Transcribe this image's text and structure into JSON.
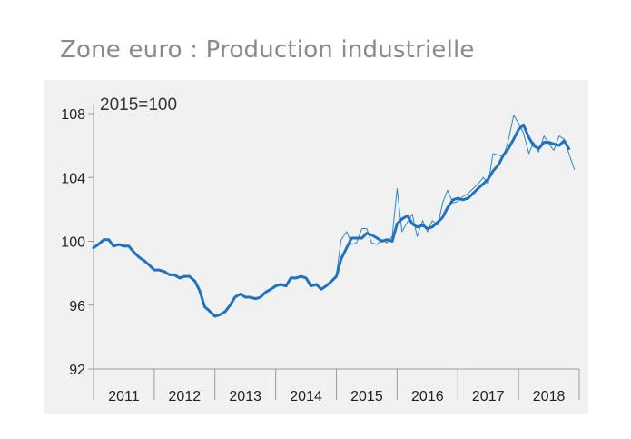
{
  "title": "Zone euro : Production industrielle",
  "chart_data": {
    "type": "line",
    "title": "Zone euro : Production industrielle",
    "subtitle": "2015=100",
    "xlabel": "",
    "ylabel": "",
    "ylim": [
      92,
      108
    ],
    "yticks": [
      92,
      96,
      100,
      104,
      108
    ],
    "xlim": [
      2011.0,
      2019.0
    ],
    "year_labels": [
      "2011",
      "2012",
      "2013",
      "2014",
      "2015",
      "2016",
      "2017",
      "2018"
    ],
    "grid": false,
    "legend": "none",
    "colors": {
      "thick": "#1f72bb",
      "thin": "#2e86c9"
    },
    "series": [
      {
        "style": "thick",
        "x": [
          2011.0,
          2011.08,
          2011.17,
          2011.25,
          2011.33,
          2011.42,
          2011.5,
          2011.58,
          2011.67,
          2011.75,
          2011.83,
          2011.92,
          2012.0,
          2012.08,
          2012.17,
          2012.25,
          2012.33,
          2012.42,
          2012.5,
          2012.58,
          2012.67,
          2012.75,
          2012.83,
          2012.92,
          2013.0,
          2013.08,
          2013.17,
          2013.25,
          2013.33,
          2013.42,
          2013.5,
          2013.58,
          2013.67,
          2013.75,
          2013.83,
          2013.92,
          2014.0,
          2014.08,
          2014.17,
          2014.25,
          2014.33,
          2014.42,
          2014.5,
          2014.58,
          2014.67,
          2014.75,
          2014.83,
          2014.92,
          2015.0,
          2015.08,
          2015.17,
          2015.25,
          2015.33,
          2015.42,
          2015.5,
          2015.58,
          2015.67,
          2015.75,
          2015.83,
          2015.92,
          2016.0,
          2016.08,
          2016.17,
          2016.25,
          2016.33,
          2016.42,
          2016.5,
          2016.58,
          2016.67,
          2016.75,
          2016.83,
          2016.92,
          2017.0,
          2017.08,
          2017.17,
          2017.25,
          2017.33,
          2017.42,
          2017.5,
          2017.58,
          2017.67,
          2017.75,
          2017.83,
          2017.92,
          2018.0,
          2018.08,
          2018.17,
          2018.25,
          2018.33,
          2018.42,
          2018.5,
          2018.58,
          2018.67,
          2018.75,
          2018.83
        ],
        "values": [
          99.6,
          99.8,
          100.1,
          100.1,
          99.7,
          99.8,
          99.7,
          99.7,
          99.3,
          99.0,
          98.8,
          98.5,
          98.2,
          98.2,
          98.1,
          97.9,
          97.9,
          97.7,
          97.8,
          97.8,
          97.5,
          96.9,
          95.9,
          95.6,
          95.3,
          95.4,
          95.6,
          96.0,
          96.5,
          96.7,
          96.5,
          96.5,
          96.4,
          96.5,
          96.8,
          97.0,
          97.2,
          97.3,
          97.2,
          97.7,
          97.7,
          97.8,
          97.7,
          97.2,
          97.3,
          97.0,
          97.2,
          97.5,
          97.8,
          98.9,
          99.6,
          100.2,
          100.2,
          100.2,
          100.5,
          100.4,
          100.2,
          100.0,
          100.1,
          100.0,
          101.1,
          101.4,
          101.6,
          101.1,
          100.9,
          101.0,
          100.8,
          100.9,
          101.2,
          101.5,
          102.1,
          102.6,
          102.7,
          102.6,
          102.7,
          103.0,
          103.3,
          103.6,
          103.9,
          104.4,
          104.8,
          105.4,
          105.8,
          106.4,
          107.0,
          107.3,
          106.5,
          106.0,
          105.8,
          106.2,
          106.2,
          106.1,
          106.0,
          106.3,
          105.8
        ]
      },
      {
        "style": "thin",
        "x": [
          2015.0,
          2015.08,
          2015.17,
          2015.25,
          2015.33,
          2015.42,
          2015.5,
          2015.58,
          2015.67,
          2015.75,
          2015.83,
          2015.92,
          2016.0,
          2016.08,
          2016.17,
          2016.25,
          2016.33,
          2016.42,
          2016.5,
          2016.58,
          2016.67,
          2016.75,
          2016.83,
          2016.92,
          2017.0,
          2017.08,
          2017.17,
          2017.25,
          2017.33,
          2017.42,
          2017.5,
          2017.58,
          2017.67,
          2017.75,
          2017.83,
          2017.92,
          2018.0,
          2018.08,
          2018.17,
          2018.25,
          2018.33,
          2018.42,
          2018.5,
          2018.58,
          2018.67,
          2018.75,
          2018.83,
          2018.92
        ],
        "values": [
          97.9,
          100.1,
          100.6,
          99.8,
          99.9,
          100.8,
          100.8,
          99.9,
          99.8,
          100.1,
          99.9,
          100.3,
          103.3,
          100.6,
          101.2,
          101.7,
          100.3,
          101.3,
          100.6,
          101.3,
          101.0,
          102.4,
          103.2,
          102.4,
          102.5,
          102.8,
          103.0,
          103.3,
          103.6,
          104.0,
          103.6,
          105.5,
          105.4,
          105.3,
          106.3,
          107.9,
          107.4,
          106.8,
          105.5,
          106.2,
          105.6,
          106.6,
          106.1,
          105.7,
          106.6,
          106.4,
          105.5,
          104.5
        ]
      }
    ]
  }
}
